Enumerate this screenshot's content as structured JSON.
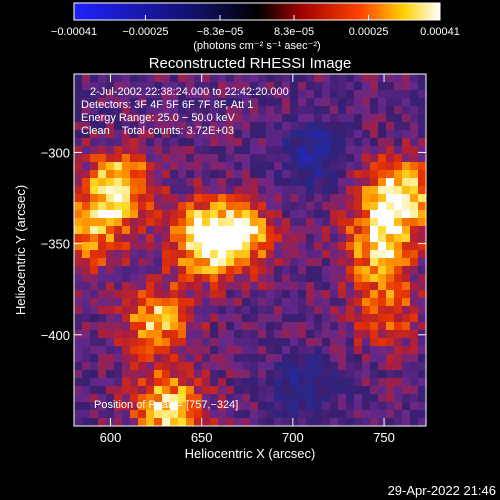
{
  "chart_data": {
    "type": "heatmap",
    "title": "Reconstructed RHESSI Image",
    "xlabel": "Heliocentric X (arcsec)",
    "ylabel": "Heliocentric Y (arcsec)",
    "xlim": [
      580,
      773
    ],
    "ylim": [
      -450,
      -257
    ],
    "x_ticks": [
      600,
      650,
      700,
      750
    ],
    "y_ticks": [
      -300,
      -350,
      -400
    ],
    "x_tick_labels": [
      "600",
      "650",
      "700",
      "750"
    ],
    "y_tick_labels": [
      "−300",
      "−350",
      "−400"
    ],
    "colorbar": {
      "range": [
        -0.00041,
        0.00041
      ],
      "ticks": [
        -0.00041,
        -0.00025,
        -8.3e-05,
        8.3e-05,
        0.00025,
        0.00041
      ],
      "tick_labels": [
        "−0.00041",
        "−0.00025",
        "−8.3e−05",
        "8.3e−05",
        "0.00025",
        "0.00041"
      ],
      "unit_label": "(photons cm⁻² s⁻¹ asec⁻²)",
      "colormap": "RHESSI blue-black-red-yellow-white"
    },
    "annotations": {
      "time_range": "2-Jul-2002 22:38:24.000 to 22:42:20.000",
      "detectors": "Detectors: 3F 4F 5F 6F 7F 8F, Att 1",
      "energy_range": "Energy Range: 25.0 − 50.0 keV",
      "clean_counts": "Clean    Total counts: 3.72E+03",
      "peak_position": "Position of Peak = [757,−324]"
    },
    "peak": [
      757,
      -324
    ],
    "emission_sources": [
      {
        "x": 757,
        "y": -324,
        "amplitude": 1.0
      },
      {
        "x": 747,
        "y": -352,
        "amplitude": 0.75
      },
      {
        "x": 652,
        "y": -348,
        "amplitude": 0.95
      },
      {
        "x": 672,
        "y": -345,
        "amplitude": 0.7
      },
      {
        "x": 605,
        "y": -318,
        "amplitude": 0.85
      },
      {
        "x": 590,
        "y": -345,
        "amplitude": 0.65
      },
      {
        "x": 625,
        "y": -392,
        "amplitude": 0.75
      },
      {
        "x": 632,
        "y": -440,
        "amplitude": 0.85
      },
      {
        "x": 750,
        "y": -388,
        "amplitude": 0.55
      }
    ],
    "negative_sources": [
      {
        "x": 712,
        "y": -300,
        "amplitude": 0.55
      },
      {
        "x": 705,
        "y": -430,
        "amplitude": 0.45
      }
    ],
    "colors": {
      "background": "#000000",
      "foreground": "#ffffff"
    }
  },
  "footer": {
    "timestamp": "29-Apr-2022 21:46"
  }
}
